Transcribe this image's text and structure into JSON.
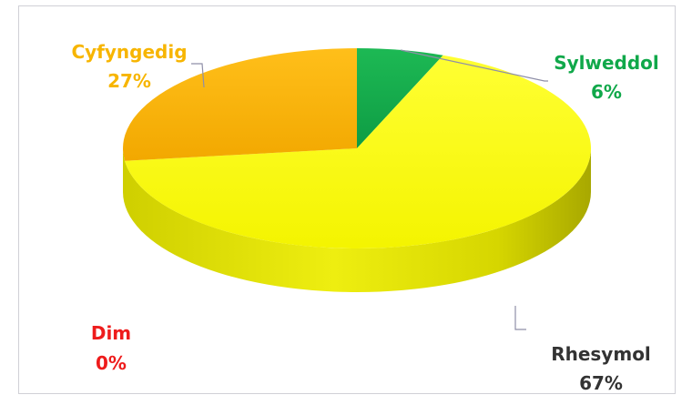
{
  "chart_data": {
    "type": "pie",
    "style": "3d",
    "slices": [
      {
        "label": "Sylweddol",
        "value": 6,
        "value_label": "6%",
        "color": "#10a84a"
      },
      {
        "label": "Rhesymol",
        "value": 67,
        "value_label": "67%",
        "color": "#ffff00"
      },
      {
        "label": "Dim",
        "value": 0,
        "value_label": "0%",
        "color": "#ee1c1c"
      },
      {
        "label": "Cyfyngedig",
        "value": 27,
        "value_label": "27%",
        "color": "#f7b500"
      }
    ],
    "label_colors": {
      "Sylweddol": "#10a84a",
      "Rhesymol": "#333333",
      "Dim": "#ee1c1c",
      "Cyfyngedig": "#f7b500"
    },
    "border_color": "#d0d0d6"
  }
}
